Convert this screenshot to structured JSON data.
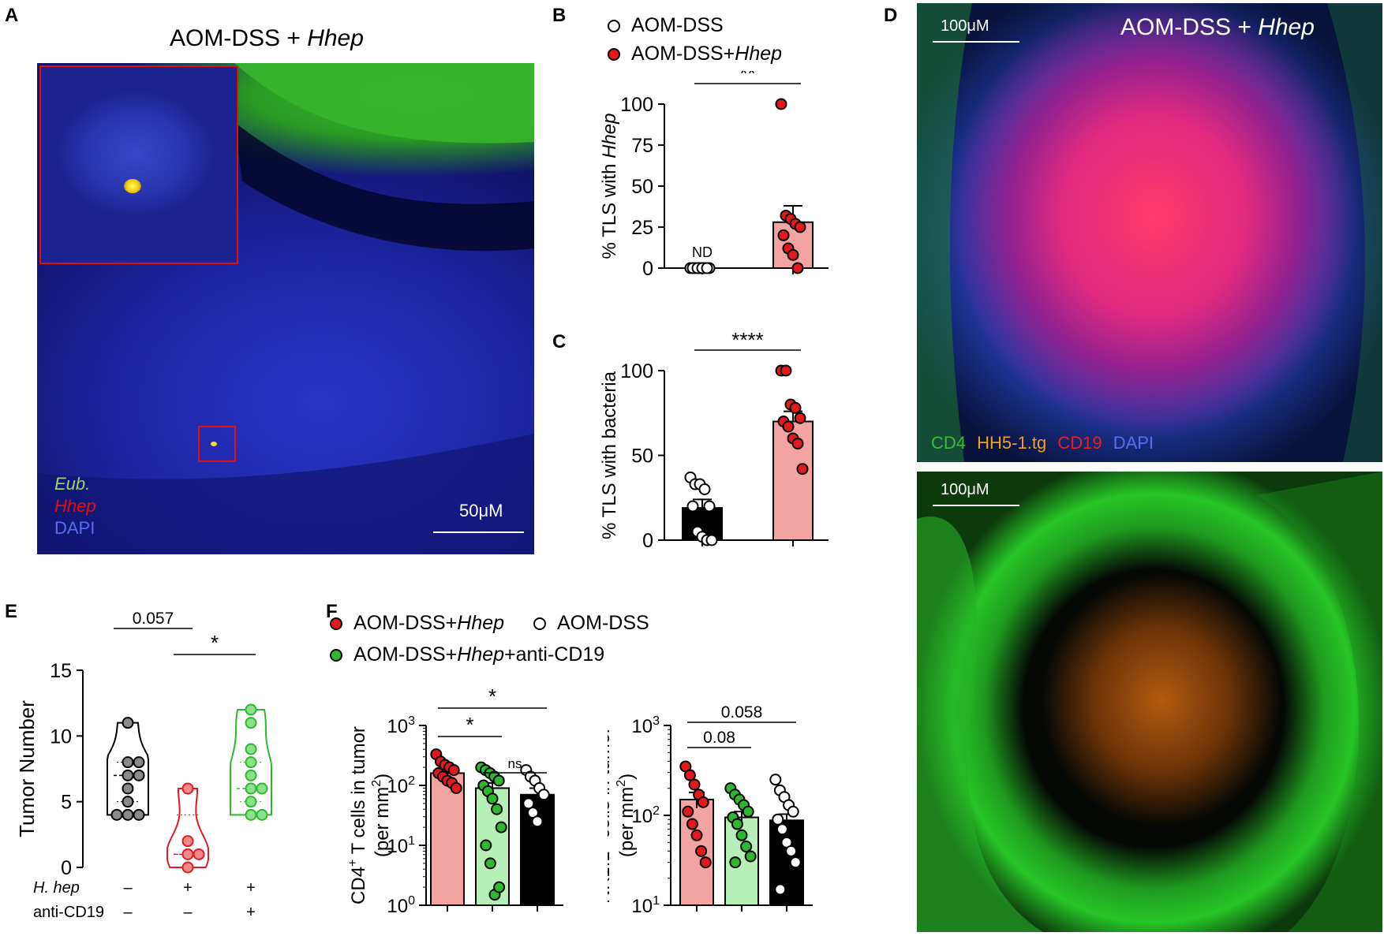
{
  "figure": {
    "panel_letters": [
      "A",
      "B",
      "C",
      "D",
      "E",
      "F"
    ]
  },
  "panel_a": {
    "title_prefix": "AOM-DSS + ",
    "title_italic": "Hhep",
    "scale_bar": "50μM",
    "channels": [
      {
        "label": "Eub.",
        "italic": true,
        "color": "#9dd36b"
      },
      {
        "label": "Hhep",
        "italic": true,
        "color": "#e01010"
      },
      {
        "label": "DAPI",
        "italic": false,
        "color": "#5a6cf0"
      }
    ]
  },
  "panel_d": {
    "title_prefix": "AOM-DSS + ",
    "title_italic": "Hhep",
    "scale_bar_top": "100μM",
    "scale_bar_bottom": "100μM",
    "channels": [
      {
        "label": "CD4",
        "color": "#3dbb3d"
      },
      {
        "label": "HH5-1.tg",
        "color": "#f0a020"
      },
      {
        "label": "CD19",
        "color": "#e52020"
      },
      {
        "label": "DAPI",
        "color": "#5a6cf0"
      }
    ]
  },
  "legend_bc": {
    "items": [
      {
        "label": "AOM-DSS",
        "italic": "",
        "fill": "#ffffff"
      },
      {
        "label": "AOM-DSS+",
        "italic": "Hhep",
        "fill": "#e31a1c"
      }
    ]
  },
  "legend_f": {
    "items": [
      {
        "label": "AOM-DSS+",
        "italic": "Hhep",
        "suffix": "",
        "fill": "#e31a1c"
      },
      {
        "label": "AOM-DSS",
        "italic": "",
        "suffix": "",
        "fill": "#ffffff"
      },
      {
        "label": "AOM-DSS+",
        "italic": "Hhep",
        "suffix": "+anti-CD19",
        "fill": "#2db82d"
      }
    ]
  },
  "chart_data": [
    {
      "id": "B",
      "type": "bar",
      "ylabel_prefix": "% TLS with ",
      "ylabel_italic": "Hhep",
      "ylim": [
        0,
        100
      ],
      "yticks": [
        0,
        25,
        50,
        75,
        100
      ],
      "groups": [
        {
          "name": "AOM-DSS",
          "mean": 0,
          "sem": 0,
          "points": [
            0,
            0,
            0,
            0,
            0,
            0,
            0,
            0,
            0
          ],
          "annotation": "ND"
        },
        {
          "name": "AOM-DSS+Hhep",
          "mean": 28,
          "sem": 10,
          "points": [
            100,
            32,
            30,
            27,
            25,
            20,
            12,
            8,
            0
          ]
        }
      ],
      "significance": [
        {
          "from": 0,
          "to": 1,
          "label": "**"
        }
      ]
    },
    {
      "id": "C",
      "type": "bar",
      "ylabel": "% TLS with bacteria",
      "ylim": [
        0,
        100
      ],
      "yticks": [
        0,
        50,
        100
      ],
      "groups": [
        {
          "name": "AOM-DSS",
          "mean": 19,
          "sem": 5,
          "points": [
            37,
            33,
            33,
            30,
            20,
            20,
            5,
            2,
            0,
            0
          ]
        },
        {
          "name": "AOM-DSS+Hhep",
          "mean": 70,
          "sem": 6,
          "points": [
            100,
            100,
            80,
            78,
            72,
            70,
            67,
            60,
            57,
            42
          ]
        }
      ],
      "significance": [
        {
          "from": 0,
          "to": 1,
          "label": "****"
        }
      ]
    },
    {
      "id": "E",
      "type": "violin",
      "ylabel": "Tumor Number",
      "ylim": [
        0,
        15
      ],
      "yticks": [
        0,
        5,
        10,
        15
      ],
      "row_labels": [
        {
          "label": "H. hep",
          "italic": true,
          "values": [
            "–",
            "+",
            "+"
          ]
        },
        {
          "label": "anti-CD19",
          "italic": false,
          "values": [
            "–",
            "–",
            "+"
          ]
        }
      ],
      "groups": [
        {
          "color": "#000000",
          "fill": "#8a8a8a",
          "median": 7,
          "q1": 5,
          "q3": 8,
          "points": [
            11,
            8,
            8,
            7,
            7,
            6,
            5,
            4,
            4,
            4
          ]
        },
        {
          "color": "#e31a1c",
          "fill": "#f08a8a",
          "median": 1,
          "q1": 1,
          "q3": 4,
          "points": [
            6,
            2,
            1,
            1,
            0
          ]
        },
        {
          "color": "#2db82d",
          "fill": "#8ce08c",
          "median": 6,
          "q1": 5,
          "q3": 8,
          "points": [
            12,
            11,
            9,
            8,
            7,
            6,
            6,
            5,
            4,
            4
          ]
        }
      ],
      "significance": [
        {
          "from": 0,
          "to": 1,
          "label": "0.057"
        },
        {
          "from": 1,
          "to": 2,
          "label": "*"
        }
      ]
    },
    {
      "id": "F-CD4",
      "type": "bar",
      "scale": "log",
      "ylabel_line1_prefix": "CD4",
      "ylabel_line1_sup": "+",
      "ylabel_line1_suffix": " T cells in tumor",
      "ylabel_line2_prefix": "(per mm",
      "ylabel_line2_sup": "2",
      "ylabel_line2_suffix": ")",
      "ylim": [
        1,
        1000
      ],
      "yticks": [
        {
          "base": "10",
          "exp": "0"
        },
        {
          "base": "10",
          "exp": "1"
        },
        {
          "base": "10",
          "exp": "2"
        },
        {
          "base": "10",
          "exp": "3"
        }
      ],
      "groups": [
        {
          "fill": "#f4a3a3",
          "dot": "#e31a1c",
          "mean": 160,
          "sem": 30,
          "points": [
            330,
            250,
            220,
            200,
            180,
            160,
            140,
            120,
            110,
            90
          ]
        },
        {
          "fill": "#b7f0b7",
          "dot": "#2db82d",
          "mean": 90,
          "sem": 20,
          "points": [
            200,
            180,
            160,
            140,
            120,
            100,
            80,
            60,
            40,
            20,
            10,
            5,
            1.5,
            2
          ]
        },
        {
          "fill": "#000000",
          "dot": "#ffffff",
          "mean": 70,
          "sem": 20,
          "points": [
            180,
            140,
            120,
            90,
            70,
            50,
            35,
            25
          ]
        }
      ],
      "significance": [
        {
          "from": 0,
          "to": 1,
          "label": "*"
        },
        {
          "from": 0,
          "to": 2,
          "label": "*"
        },
        {
          "from": 1,
          "to": 2,
          "label": "ns"
        }
      ]
    },
    {
      "id": "F-NK",
      "type": "bar",
      "scale": "log",
      "ylabel_line1_prefix": "NK1.1",
      "ylabel_line1_sup": "+",
      "ylabel_line1_suffix": " cells in tumor",
      "ylabel_line2_prefix": "(per mm",
      "ylabel_line2_sup": "2",
      "ylabel_line2_suffix": ")",
      "ylim": [
        10,
        1000
      ],
      "yticks": [
        {
          "base": "10",
          "exp": "1"
        },
        {
          "base": "10",
          "exp": "2"
        },
        {
          "base": "10",
          "exp": "3"
        }
      ],
      "groups": [
        {
          "fill": "#f4a3a3",
          "dot": "#e31a1c",
          "mean": 150,
          "sem": 30,
          "points": [
            350,
            280,
            220,
            170,
            140,
            110,
            80,
            60,
            40,
            30
          ]
        },
        {
          "fill": "#b7f0b7",
          "dot": "#2db82d",
          "mean": 95,
          "sem": 15,
          "points": [
            200,
            170,
            150,
            130,
            110,
            95,
            80,
            60,
            45,
            35,
            30
          ]
        },
        {
          "fill": "#000000",
          "dot": "#ffffff",
          "mean": 88,
          "sem": 15,
          "points": [
            250,
            190,
            160,
            130,
            110,
            90,
            70,
            50,
            40,
            30,
            15
          ]
        }
      ],
      "significance": [
        {
          "from": 0,
          "to": 1,
          "label": "0.08"
        },
        {
          "from": 0,
          "to": 2,
          "label": "0.058"
        }
      ]
    }
  ]
}
